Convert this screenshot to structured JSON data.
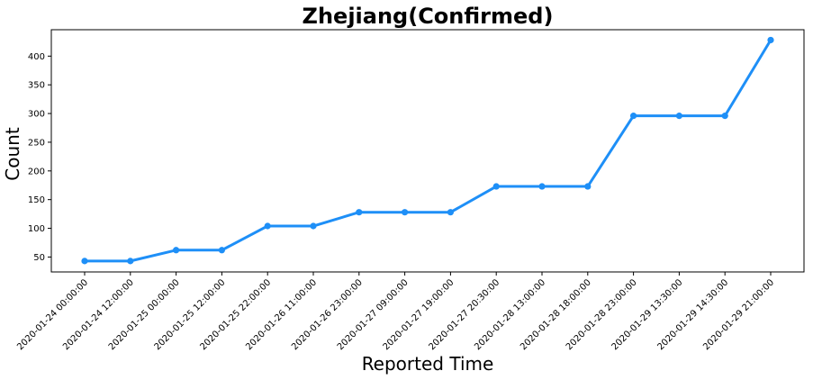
{
  "chart_data": {
    "type": "line",
    "title": "Zhejiang(Confirmed)",
    "xlabel": "Reported Time",
    "ylabel": "Count",
    "categories": [
      "2020-01-24 00:00:00",
      "2020-01-24 12:00:00",
      "2020-01-25 00:00:00",
      "2020-01-25 12:00:00",
      "2020-01-25 22:00:00",
      "2020-01-26 11:00:00",
      "2020-01-26 23:00:00",
      "2020-01-27 09:00:00",
      "2020-01-27 19:00:00",
      "2020-01-27 20:30:00",
      "2020-01-28 13:00:00",
      "2020-01-28 18:00:00",
      "2020-01-28 23:00:00",
      "2020-01-29 13:30:00",
      "2020-01-29 14:30:00",
      "2020-01-29 21:00:00"
    ],
    "values": [
      43,
      43,
      62,
      62,
      104,
      104,
      128,
      128,
      128,
      173,
      173,
      173,
      296,
      296,
      296,
      428
    ],
    "ylim": [
      24,
      446
    ],
    "yticks": [
      50,
      100,
      150,
      200,
      250,
      300,
      350,
      400
    ],
    "line_color": "#1e8ff7",
    "grid": false,
    "legend": "none"
  }
}
